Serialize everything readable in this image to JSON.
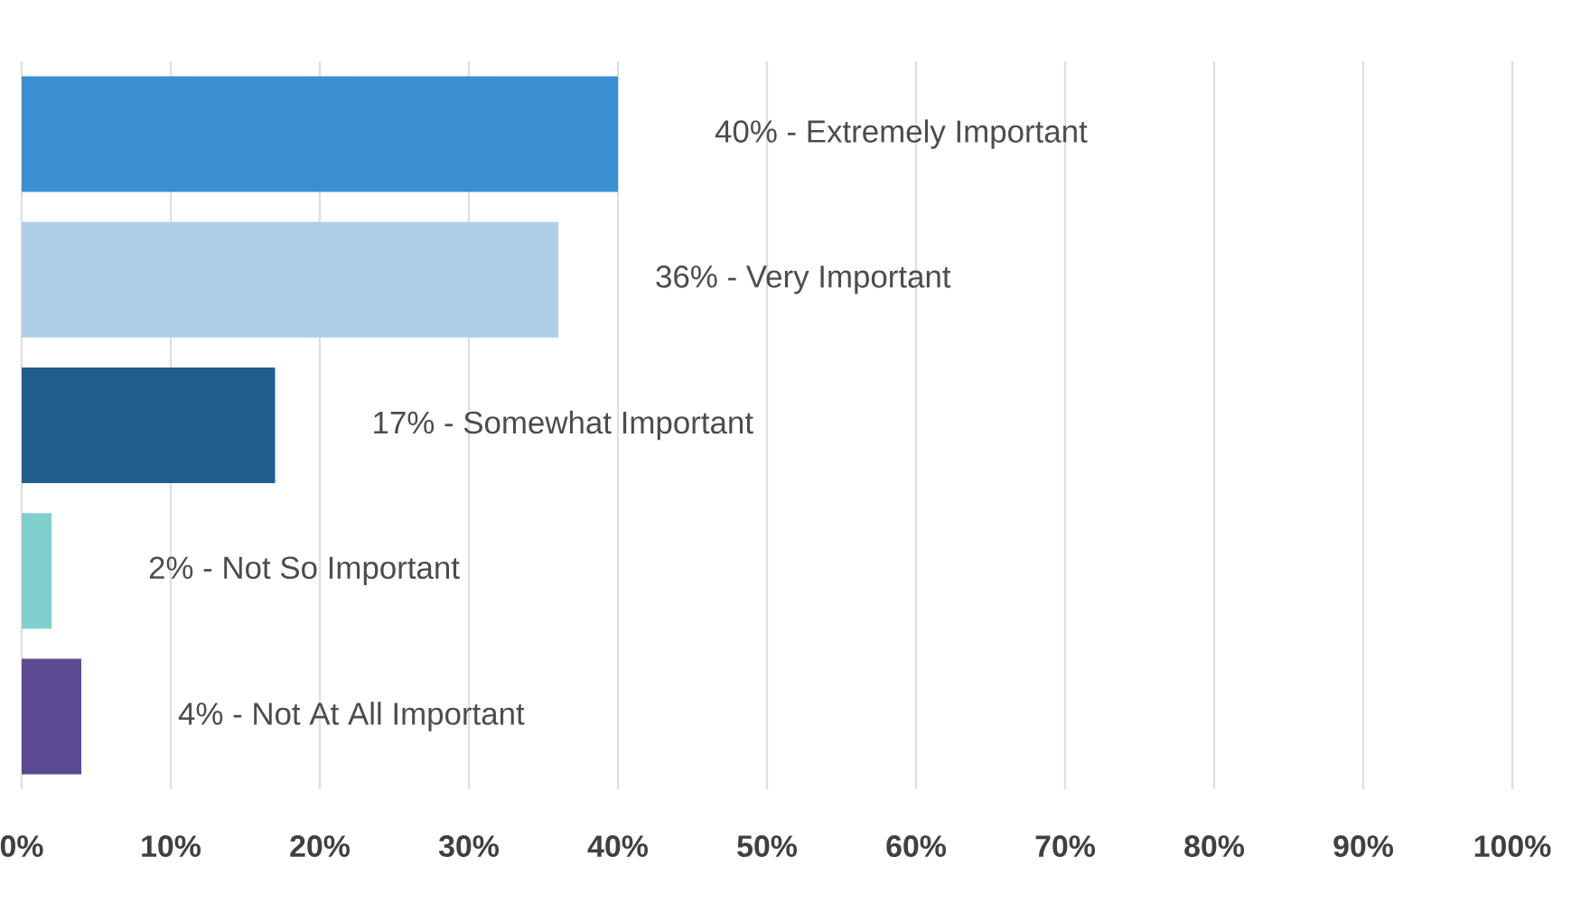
{
  "chart_data": {
    "type": "bar",
    "orientation": "horizontal",
    "categories": [
      null,
      null,
      null,
      null,
      null
    ],
    "values": [
      40,
      36,
      17,
      2,
      4
    ],
    "colors": [
      "#3a8fd1",
      "#aecfea",
      "#1f5d8f",
      "#7fd0cc",
      "#5b4a91"
    ],
    "value_labels": [
      "40% - Extremely Important",
      "36% - Very Important",
      "17% - Somewhat Important",
      "2% - Not So Important",
      "4% - Not At All Important"
    ],
    "xlim": [
      0,
      100
    ],
    "xticks": [
      {
        "value": 0,
        "label": "0%"
      },
      {
        "value": 10,
        "label": "10%"
      },
      {
        "value": 20,
        "label": "20%"
      },
      {
        "value": 30,
        "label": "30%"
      },
      {
        "value": 40,
        "label": "40%"
      },
      {
        "value": 50,
        "label": "50%"
      },
      {
        "value": 60,
        "label": "60%"
      },
      {
        "value": 70,
        "label": "70%"
      },
      {
        "value": 80,
        "label": "80%"
      },
      {
        "value": 90,
        "label": "90%"
      },
      {
        "value": 100,
        "label": "100%"
      }
    ],
    "grid": "x"
  }
}
